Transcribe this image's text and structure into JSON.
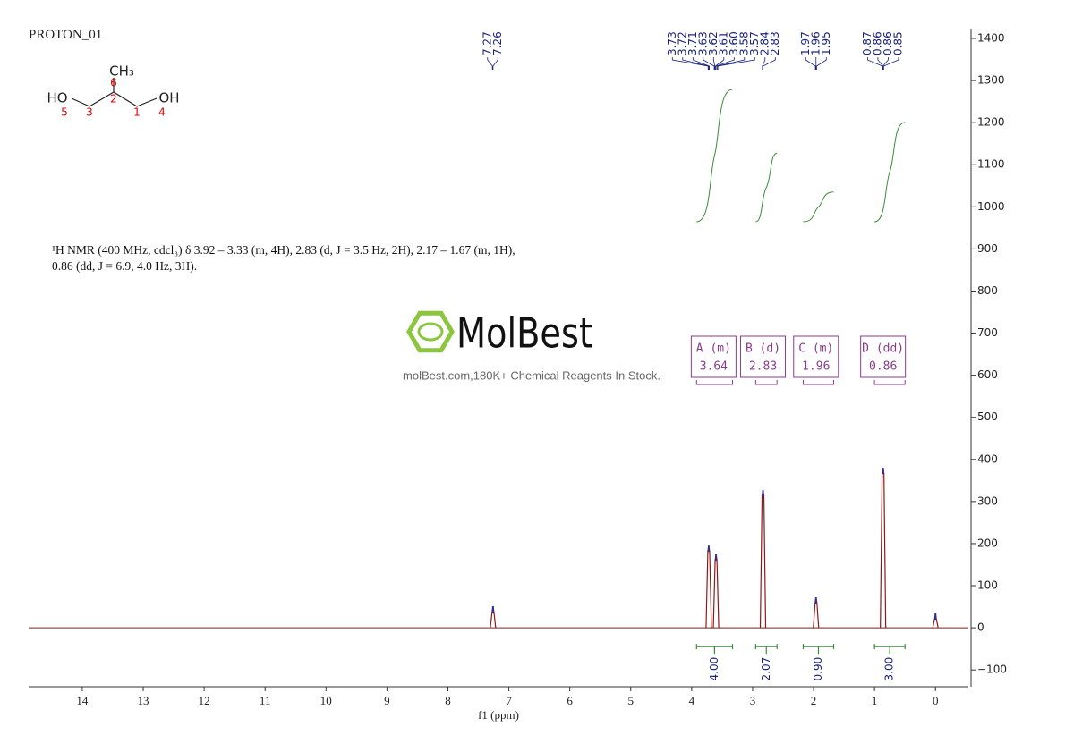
{
  "chart_data": {
    "type": "nmr",
    "title": "PROTON_01",
    "xlabel": "f1 (ppm)",
    "xlim": [
      14.88,
      -0.54
    ],
    "xticks": [
      14,
      13,
      12,
      11,
      10,
      9,
      8,
      7,
      6,
      5,
      4,
      3,
      2,
      1,
      0
    ],
    "ylim": [
      -140,
      1417
    ],
    "yticks": [
      {
        "value": -100,
        "label": "−100"
      },
      0,
      100,
      200,
      300,
      400,
      500,
      600,
      700,
      800,
      900,
      1000,
      1100,
      1200,
      1300,
      1400
    ],
    "peaks": {
      "x": [
        7.26,
        3.72,
        3.6,
        2.83,
        1.96,
        0.86,
        0.0
      ],
      "values": [
        51,
        195,
        174,
        327,
        72,
        380,
        34
      ],
      "color": "#8b1a1a"
    },
    "peak_picks": {
      "values": [
        7.27,
        7.26,
        3.73,
        3.72,
        3.71,
        3.63,
        3.62,
        3.61,
        3.6,
        3.58,
        3.57,
        2.84,
        2.83,
        1.97,
        1.96,
        1.95,
        0.87,
        0.86,
        0.86,
        0.85
      ],
      "value_labels": [
        "7.27",
        "7.26",
        "3.73",
        "3.72",
        "3.71",
        "3.63",
        "3.62",
        "3.61",
        "3.60",
        "3.58",
        "3.57",
        "2.84",
        "2.83",
        "1.97",
        "1.96",
        "1.95",
        "0.87",
        "0.86",
        "0.86",
        "0.85"
      ]
    },
    "integrals": {
      "ranges": [
        [
          3.92,
          3.33
        ],
        [
          2.95,
          2.6
        ],
        [
          2.17,
          1.67
        ],
        [
          1.0,
          0.5
        ]
      ],
      "values": [
        4,
        2.07,
        0.9,
        3
      ],
      "value_labels": [
        "4.00",
        "2.07",
        "0.90",
        "3.00"
      ],
      "color": "#3a8a3a"
    },
    "multiplets": {
      "names": [
        "A (m)",
        "B (d)",
        "C (m)",
        "D (dd)"
      ],
      "shifts": [
        3.64,
        2.83,
        1.96,
        0.86
      ],
      "color": "#8b3a8b"
    },
    "description": "¹H NMR (400 MHz, cdcl₃) δ 3.92 – 3.33 (m, 4H), 2.83 (d, J = 3.5 Hz, 2H), 2.17 – 1.67 (m, 1H), 0.86 (dd, J = 6.9, 4.0 Hz, 3H).",
    "structure": {
      "atoms": [
        "HO",
        "CH₃",
        "OH"
      ],
      "numbers": [
        5,
        3,
        6,
        2,
        1,
        4
      ]
    },
    "watermark": {
      "brand": "MolBest",
      "tagline": "molBest.com,180K+ Chemical Reagents In Stock."
    }
  }
}
